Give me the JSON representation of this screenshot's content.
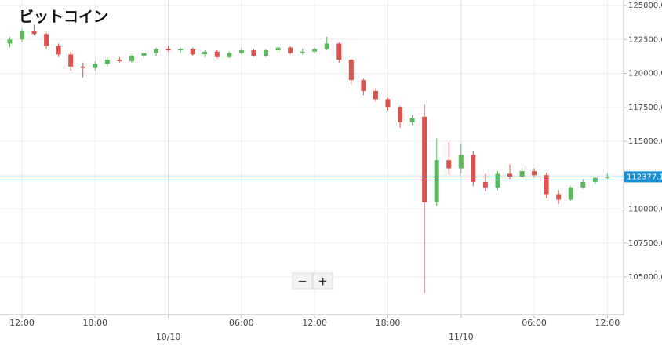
{
  "chart_data": {
    "type": "candlestick",
    "title": "ビットコイン",
    "categories": [
      null,
      "12:00",
      null,
      null,
      null,
      null,
      null,
      "18:00",
      null,
      null,
      null,
      null,
      null,
      "10/10",
      null,
      null,
      null,
      null,
      null,
      "06:00",
      null,
      null,
      null,
      null,
      null,
      "12:00",
      null,
      null,
      null,
      null,
      null,
      "18:00",
      null,
      null,
      null,
      null,
      null,
      "11/10",
      null,
      null,
      null,
      null,
      null,
      "06:00",
      null,
      null,
      null,
      null,
      null,
      "12:00"
    ],
    "open": [
      122200,
      122500,
      123100,
      122900,
      122000,
      121400,
      120500,
      120400,
      120700,
      121000,
      120900,
      121300,
      121500,
      121800,
      121700,
      121800,
      121400,
      121600,
      121200,
      121500,
      121700,
      121300,
      121700,
      121900,
      121500,
      121600,
      121800,
      122200,
      121000,
      119500,
      118700,
      118100,
      117500,
      116400,
      116800,
      110500,
      113600,
      113000,
      114000,
      112000,
      111600,
      112600,
      112400,
      112800,
      112500,
      111100,
      110700,
      111600,
      112000,
      112300
    ],
    "high": [
      122700,
      123300,
      123600,
      123000,
      122200,
      121600,
      120800,
      120900,
      121200,
      121200,
      121400,
      121600,
      121900,
      122000,
      121900,
      121900,
      121700,
      121700,
      121600,
      121900,
      121800,
      121800,
      122000,
      122000,
      121800,
      121900,
      122700,
      122300,
      121100,
      119600,
      118900,
      118200,
      117600,
      116900,
      117700,
      115200,
      114900,
      114800,
      114300,
      112600,
      112800,
      113300,
      113000,
      113000,
      112700,
      111400,
      111700,
      112200,
      112400,
      112600
    ],
    "low": [
      121900,
      122300,
      122800,
      121800,
      121200,
      120200,
      119700,
      120200,
      120500,
      120800,
      120800,
      121100,
      121300,
      121600,
      121500,
      121300,
      121200,
      121100,
      121100,
      121400,
      121200,
      121200,
      121500,
      121400,
      121400,
      121400,
      121700,
      120800,
      119200,
      118400,
      117900,
      117300,
      116000,
      116200,
      103800,
      110200,
      112500,
      112600,
      111700,
      111300,
      111400,
      112200,
      112100,
      112300,
      110800,
      110400,
      110600,
      111500,
      111800,
      112200
    ],
    "close": [
      122500,
      123100,
      122900,
      122000,
      121400,
      120500,
      120400,
      120700,
      121000,
      120900,
      121300,
      121500,
      121800,
      121700,
      121800,
      121400,
      121600,
      121200,
      121500,
      121700,
      121300,
      121700,
      121900,
      121500,
      121600,
      121800,
      122200,
      121000,
      119500,
      118700,
      118100,
      117500,
      116400,
      116700,
      110500,
      113600,
      113000,
      114000,
      112000,
      111600,
      112600,
      112400,
      112800,
      112500,
      111100,
      110700,
      111600,
      112000,
      112300,
      112377.1
    ],
    "up_color": "#5cb85c",
    "down_color": "#d9534f",
    "last_price": 112377.1,
    "last_price_color": "#1a8fd0",
    "ylim": [
      103300,
      125300
    ],
    "yticks": [
      {
        "value": 105000,
        "label": "105000.0"
      },
      {
        "value": 107500,
        "label": "107500.0"
      },
      {
        "value": 110000,
        "label": "110000.0"
      },
      {
        "value": 112500,
        "label": "112500.0"
      },
      {
        "value": 115000,
        "label": "115000.0"
      },
      {
        "value": 117500,
        "label": "117500.0"
      },
      {
        "value": 120000,
        "label": "120000.0"
      },
      {
        "value": 122500,
        "label": "122500.0"
      },
      {
        "value": 125000,
        "label": "125000.0"
      }
    ],
    "grid": true
  },
  "ui": {
    "zoom_out": "−",
    "zoom_in": "+"
  }
}
